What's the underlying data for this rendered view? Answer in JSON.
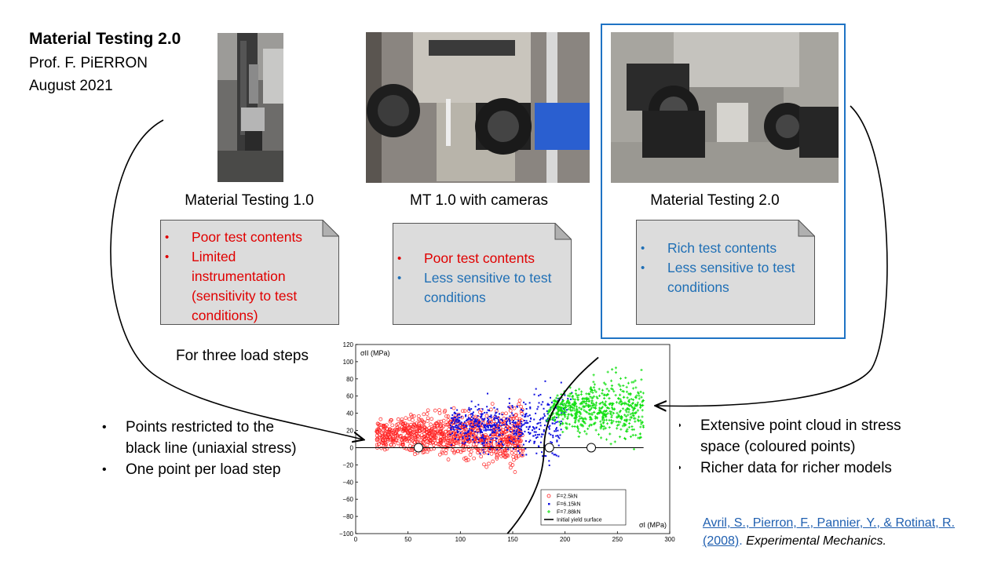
{
  "header": {
    "title": "Material Testing 2.0",
    "author": "Prof. F. PiERRON",
    "date": "August 2021"
  },
  "columns": [
    {
      "caption": "Material Testing 1.0",
      "bullets": [
        {
          "text": "Poor test contents",
          "color": "#e00000"
        },
        {
          "text": "Limited instrumentation (sensitivity to test conditions)",
          "color": "#e00000"
        }
      ]
    },
    {
      "caption": "MT 1.0 with cameras",
      "bullets": [
        {
          "text": "Poor test contents",
          "color": "#e00000"
        },
        {
          "text": "Less sensitive to test conditions",
          "color": "#1f6fb5"
        }
      ]
    },
    {
      "caption": "Material Testing 2.0",
      "bullets": [
        {
          "text": "Rich test contents",
          "color": "#1f6fb5"
        },
        {
          "text": "Less sensitive to test conditions",
          "color": "#1f6fb5"
        }
      ]
    }
  ],
  "load_steps_label": "For three load steps",
  "left_points": [
    "Points restricted to the black line (uniaxial stress)",
    "One point per load step"
  ],
  "right_points": [
    "Extensive point cloud in stress space (coloured points)",
    "Richer data for richer models"
  ],
  "reference": {
    "link": "Avril, S., Pierron, F., Pannier, Y., & Rotinat, R. (2008)",
    "journal": "Experimental Mechanics."
  },
  "chart_data": {
    "type": "scatter",
    "xlabel": "σI (MPa)",
    "ylabel": "σII (MPa)",
    "xlim": [
      0,
      300
    ],
    "ylim": [
      -100,
      120
    ],
    "xticks": [
      "0",
      "50",
      "100",
      "150",
      "200",
      "250",
      "300"
    ],
    "yticks": [
      "120",
      "100",
      "80",
      "60",
      "40",
      "20",
      "0",
      "−20",
      "−40",
      "−60",
      "−80",
      "−100"
    ],
    "series": [
      {
        "name": "F=2.5kN",
        "color": "#ff2020",
        "marker": "circle",
        "cloud": {
          "x_range": [
            20,
            160
          ],
          "y_center": 15,
          "y_spread": 35
        }
      },
      {
        "name": "F=6.15kN",
        "color": "#1010e0",
        "marker": "star",
        "cloud": {
          "x_range": [
            90,
            215
          ],
          "y_center": 25,
          "y_spread": 45
        }
      },
      {
        "name": "F=7.88kN",
        "color": "#10e010",
        "marker": "plus",
        "cloud": {
          "x_range": [
            180,
            275
          ],
          "y_center": 45,
          "y_spread": 40
        }
      }
    ],
    "uniaxial_line": {
      "y": 0,
      "x_range": [
        0,
        275
      ]
    },
    "uniaxial_points": [
      [
        60,
        0
      ],
      [
        185,
        0
      ],
      [
        225,
        0
      ]
    ],
    "yield_surface": {
      "name": "Initial yield surface",
      "color": "#000000"
    },
    "grid": false,
    "legend_position": "bottom-right"
  }
}
